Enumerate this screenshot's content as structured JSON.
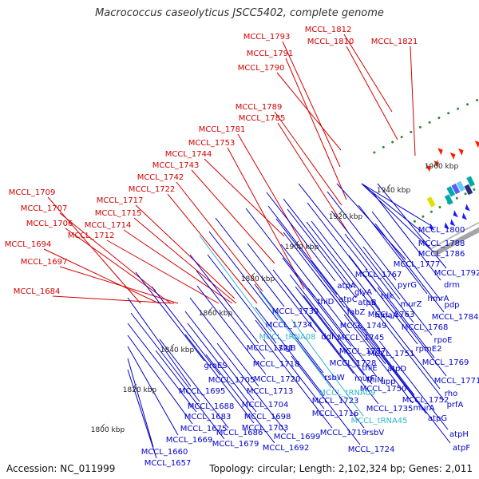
{
  "title": "Macrococcus caseolyticus JSCC5402, complete genome",
  "accession": "Accession: NC_011999",
  "topology": "Topology: circular; Length: 2,102,324 bp; Genes: 2,011",
  "colors": {
    "forward_label": "#d40000",
    "reverse_label": "#0000cc",
    "rna_label": "#33b5cc",
    "backbone": "#9a9a9a",
    "forward_arrow": "#ff1a00",
    "reverse_arrow": "#1a1aff",
    "dots": "#2e8b2e"
  },
  "kbp_ticks": [
    "1800 kbp",
    "1820 kbp",
    "1840 kbp",
    "1860 kbp",
    "1880 kbp",
    "1900 kbp",
    "1920 kbp",
    "1940 kbp",
    "1960 kbp"
  ],
  "forward_labels": [
    "MCCL_1812",
    "MCCL_1810",
    "MCCL_1821",
    "MCCL_1793",
    "MCCL_1791",
    "MCCL_1790",
    "MCCL_1789",
    "MCCL_1785",
    "MCCL_1781",
    "MCCL_1753",
    "MCCL_1744",
    "MCCL_1743",
    "MCCL_1742",
    "MCCL_1722",
    "MCCL_1709",
    "MCCL_1707",
    "MCCL_1717",
    "MCCL_1715",
    "MCCL_1706",
    "MCCL_1714",
    "MCCL_1712",
    "MCCL_1694",
    "MCCL_1697",
    "MCCL_1684"
  ],
  "reverse_labels": [
    "MCCL_1800",
    "MCCL_1788",
    "MCCL_1786",
    "MCCL_1777",
    "MCCL_1792",
    "drm",
    "pyrG",
    "MCCL_1767",
    "atpA",
    "hmrA",
    "glyA",
    "murZ",
    "pdp",
    "atpC",
    "tdk",
    "atpB",
    "MCCL_1784",
    "thiD",
    "fabZ",
    "MCCL_1763",
    "MCCL_1739",
    "mnaA",
    "MCCL_1768",
    "MCCL_1734",
    "MCCL_1749",
    "rpoE",
    "ddl",
    "MCCL_1745",
    "MCCL_1721",
    "sigB",
    "rpmE2",
    "MCCL_1737",
    "MCCL_1751",
    "MCCL_1718",
    "MCCL_1728",
    "MCCL_1769",
    "thiE",
    "groES",
    "atpD",
    "rsbW",
    "murF",
    "MCCL_1705",
    "MCCL_1720",
    "thiM",
    "upp",
    "MCCL_1771",
    "MCCL_1695",
    "MCCL_1713",
    "MCCL_1750",
    "rho",
    "MCCL_1723",
    "MCCL_1752",
    "MCCL_1704",
    "prfA",
    "MCCL_1688",
    "MCCL_1698",
    "MCCL_1716",
    "MCCL_1735",
    "MCCL_1683",
    "murA",
    "atpG",
    "MCCL_1675",
    "MCCL_1703",
    "MCCL_1686",
    "MCCL_1719",
    "rsbV",
    "MCCL_1699",
    "MCCL_1669",
    "atpH",
    "MCCL_1679",
    "MCCL_1692",
    "MCCL_1724",
    "atpF",
    "MCCL_1660",
    "MCCL_1657"
  ],
  "rna_labels": [
    "MCCL_tRNA08",
    "MCCL_tRNA09",
    "MCCL_tRNA45"
  ]
}
